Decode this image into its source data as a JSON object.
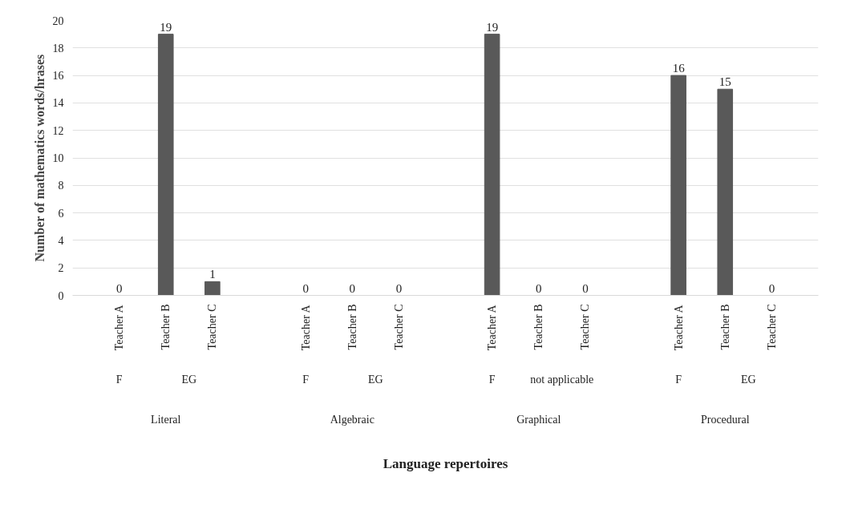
{
  "chart_data": {
    "type": "bar",
    "categories": [
      "Teacher A",
      "Teacher B",
      "Teacher C",
      "Teacher A",
      "Teacher B",
      "Teacher C",
      "Teacher A",
      "Teacher B",
      "Teacher C",
      "Teacher A",
      "Teacher B",
      "Teacher C"
    ],
    "values": [
      0,
      19,
      1,
      0,
      0,
      0,
      19,
      0,
      0,
      16,
      15,
      0
    ],
    "color": "#595959",
    "ylim": [
      0,
      20
    ],
    "yticks": [
      0,
      2,
      4,
      6,
      8,
      10,
      12,
      14,
      16,
      18,
      20
    ],
    "ylabel": "Number of mathematics words/hrases",
    "annotations": [
      "F",
      "EG",
      "F",
      "EG",
      "F",
      "not applicable",
      "F",
      "EG",
      "Literal",
      "Algebraic",
      "Graphical",
      "Procedural",
      "Language repertoires"
    ],
    "grid": "y",
    "data_labels": true
  }
}
